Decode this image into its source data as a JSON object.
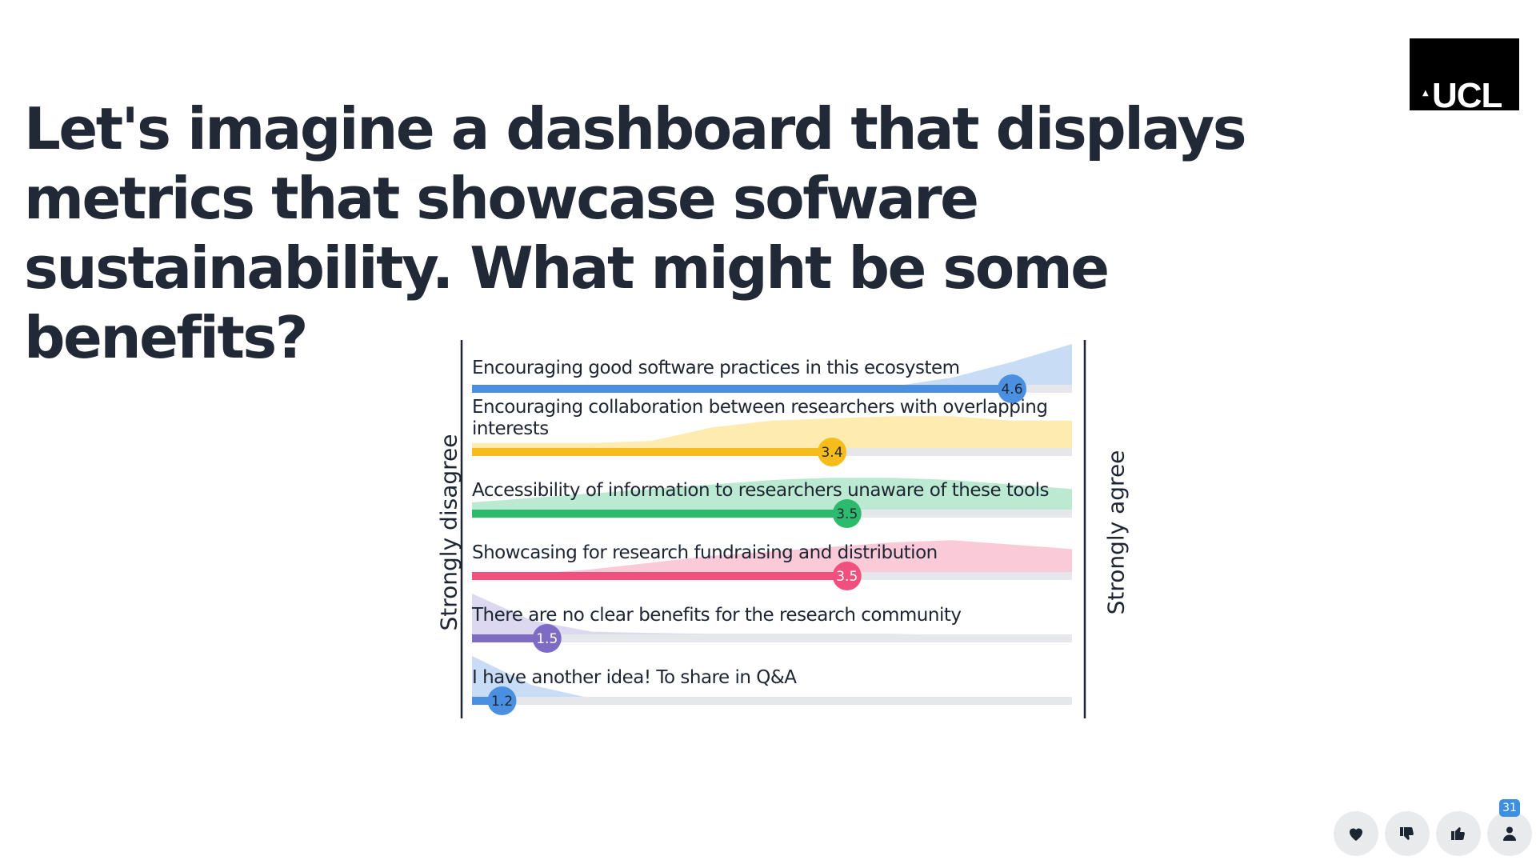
{
  "title": "Let's imagine a dashboard that displays metrics that showcase sofware sustainability. What might be some benefits?",
  "logo": {
    "text": "UCL"
  },
  "chart_data": {
    "type": "bar",
    "scale": [
      1,
      5
    ],
    "axis_left_label": "Strongly disagree",
    "axis_right_label": "Strongly agree",
    "categories": [
      "Encouraging good software practices in this ecosystem",
      "Encouraging collaboration between researchers with overlapping interests",
      "Accessibility of information to researchers unaware of these tools",
      "Showcasing for research fundraising and distribution",
      "There are no clear benefits for the research community",
      "I have another idea! To share in Q&A"
    ],
    "values": [
      4.6,
      3.4,
      3.5,
      3.5,
      1.5,
      1.2
    ],
    "value_labels": [
      "4.6",
      "3.4",
      "3.5",
      "3.5",
      "1.5",
      "1.2"
    ],
    "colors": [
      "#4a8fe0",
      "#f5bc1c",
      "#2cbb6d",
      "#f0507d",
      "#7e6cc4",
      "#4a8fe0"
    ],
    "band_colors": [
      "#c9dcf6",
      "#fdebaf",
      "#bce9d1",
      "#fbcad8",
      "#dcd8ef",
      "#c9dcf6"
    ],
    "label_colors": [
      "#1e2532",
      "#1e2532",
      "#1e2532",
      "#ffffff",
      "#ffffff",
      "#1e2532"
    ]
  },
  "reactions": {
    "heart_icon": "heart-icon",
    "thumbs_down_icon": "thumbs-down-icon",
    "thumbs_up_icon": "thumbs-up-icon",
    "participants_icon": "person-icon",
    "participant_count": "31"
  }
}
